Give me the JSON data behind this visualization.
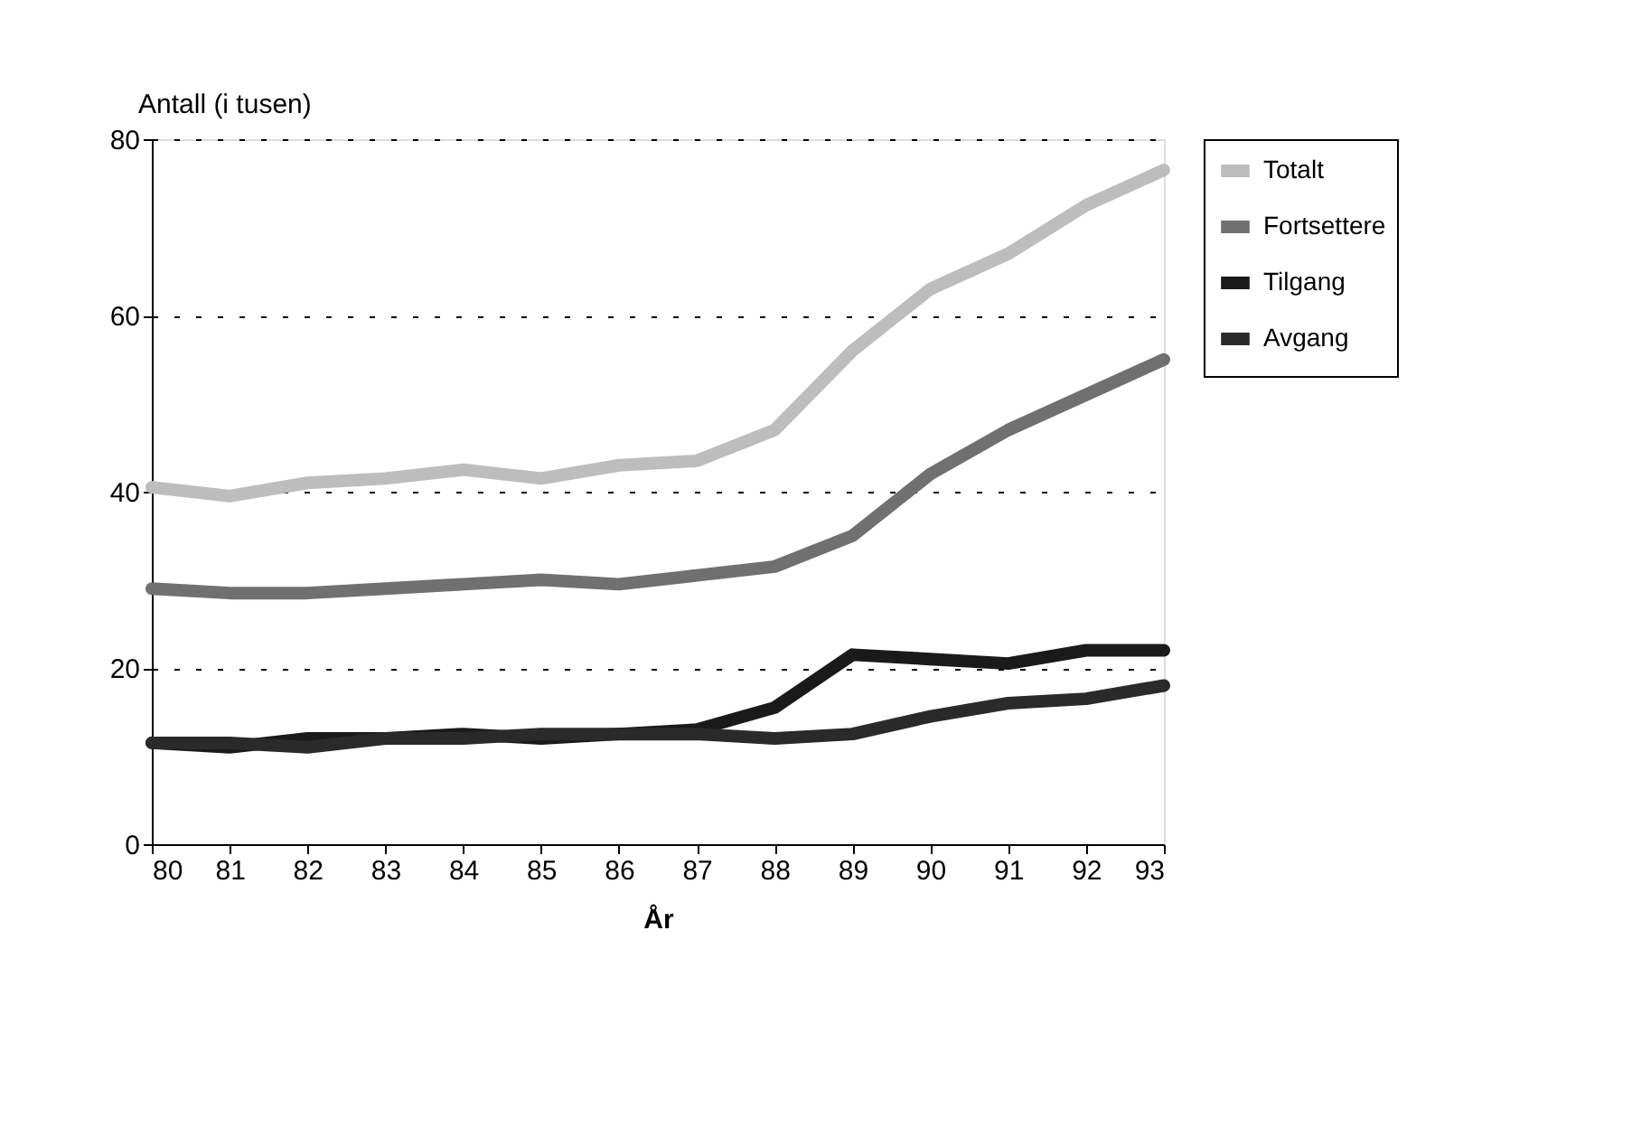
{
  "chart_data": {
    "type": "line",
    "ylabel": "Antall (i tusen)",
    "xlabel": "År",
    "categories": [
      "80",
      "81",
      "82",
      "83",
      "84",
      "85",
      "86",
      "87",
      "88",
      "89",
      "90",
      "91",
      "92",
      "93"
    ],
    "series": [
      {
        "name": "Totalt",
        "color": "#bdbdbd",
        "values": [
          40.5,
          39.5,
          41,
          41.5,
          42.5,
          41.5,
          43,
          43.5,
          47,
          56,
          63,
          67,
          72.5,
          76.5
        ]
      },
      {
        "name": "Fortsettere",
        "color": "#707070",
        "values": [
          29,
          28.5,
          28.5,
          29,
          29.5,
          30,
          29.5,
          30.5,
          31.5,
          35,
          42,
          47,
          51,
          55
        ]
      },
      {
        "name": "Tilgang",
        "color": "#1a1a1a",
        "values": [
          11.5,
          11,
          12,
          12,
          12.5,
          12,
          12.5,
          13,
          15.5,
          21.5,
          21,
          20.5,
          22,
          22
        ]
      },
      {
        "name": "Avgang",
        "color": "#2a2a2a",
        "values": [
          11.5,
          11.5,
          11,
          12,
          12,
          12.5,
          12.5,
          12.5,
          12,
          12.5,
          14.5,
          16,
          16.5,
          18
        ]
      }
    ],
    "ylim": [
      0,
      80
    ],
    "yticks": [
      0,
      20,
      40,
      60,
      80
    ],
    "grid": "y",
    "legend": "right",
    "line_style": "solid",
    "marker": "none"
  }
}
